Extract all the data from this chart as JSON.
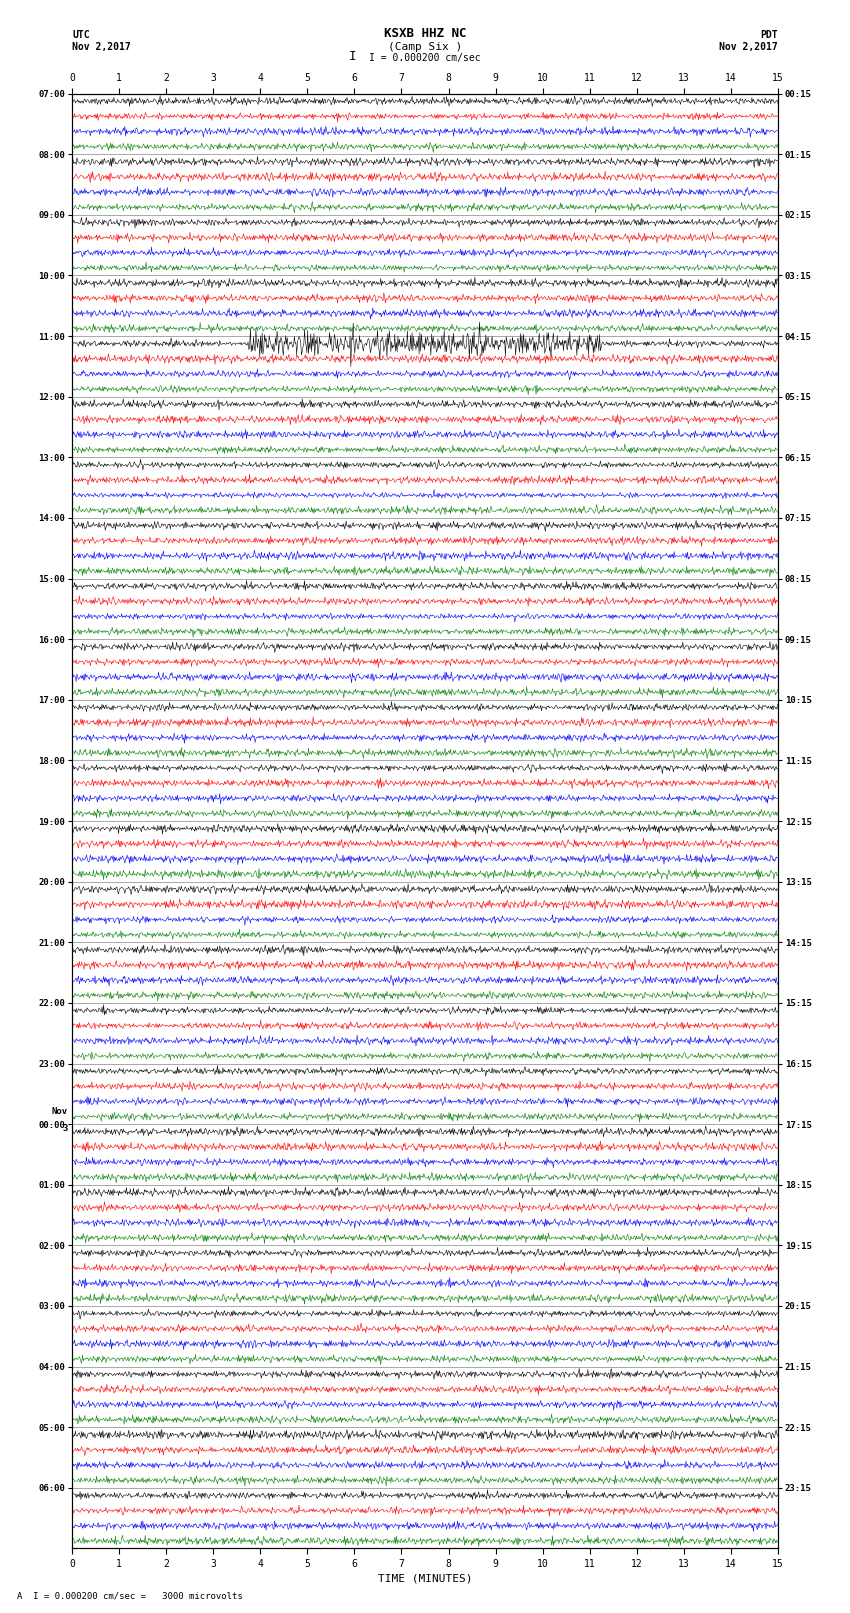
{
  "title": "KSXB HHZ NC",
  "subtitle": "(Camp Six )",
  "scale_label": "I = 0.000200 cm/sec",
  "bottom_label": "A  I = 0.000200 cm/sec =   3000 microvolts",
  "utc_line1": "UTC",
  "utc_line2": "Nov 2,2017",
  "pdt_line1": "PDT",
  "pdt_line2": "Nov 2,2017",
  "nov3_label": "Nov",
  "xlabel": "TIME (MINUTES)",
  "colors": [
    "black",
    "red",
    "blue",
    "green"
  ],
  "left_times": [
    "07:00",
    "08:00",
    "09:00",
    "10:00",
    "11:00",
    "12:00",
    "13:00",
    "14:00",
    "15:00",
    "16:00",
    "17:00",
    "18:00",
    "19:00",
    "20:00",
    "21:00",
    "22:00",
    "23:00",
    "00:00",
    "01:00",
    "02:00",
    "03:00",
    "04:00",
    "05:00",
    "06:00"
  ],
  "right_times": [
    "00:15",
    "01:15",
    "02:15",
    "03:15",
    "04:15",
    "05:15",
    "06:15",
    "07:15",
    "08:15",
    "09:15",
    "10:15",
    "11:15",
    "12:15",
    "13:15",
    "14:15",
    "15:15",
    "16:15",
    "17:15",
    "18:15",
    "19:15",
    "20:15",
    "21:15",
    "22:15",
    "23:15"
  ],
  "n_time_slots": 24,
  "n_traces_per_slot": 4,
  "minutes": 15,
  "background": "white",
  "nov3_slot": 17
}
